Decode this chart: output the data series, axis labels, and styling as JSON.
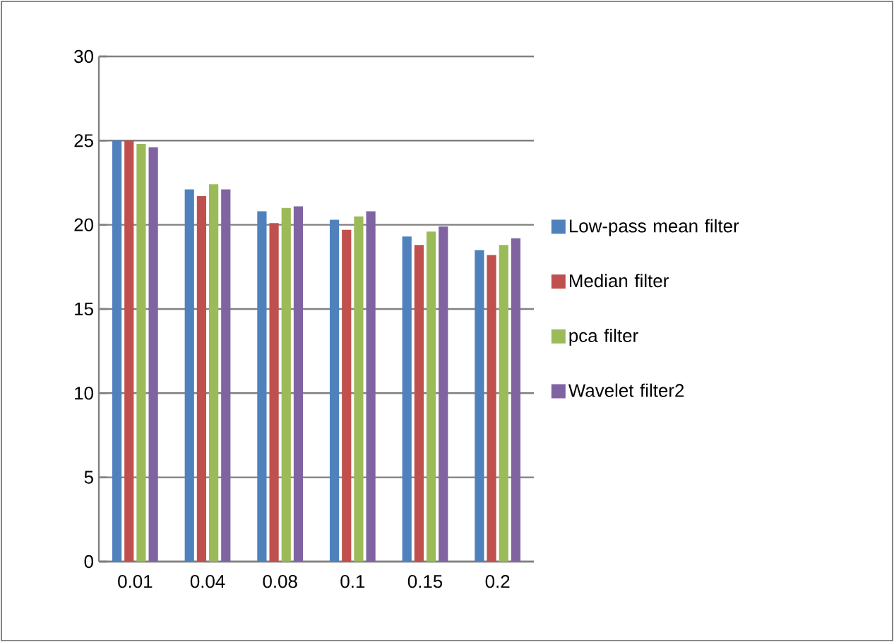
{
  "chart_data": {
    "type": "bar",
    "categories": [
      "0.01",
      "0.04",
      "0.08",
      "0.1",
      "0.15",
      "0.2"
    ],
    "series": [
      {
        "name": "Low-pass mean filter",
        "color": "#4f81bd",
        "values": [
          25.0,
          22.1,
          20.8,
          20.3,
          19.3,
          18.5
        ]
      },
      {
        "name": "Median filter",
        "color": "#c0504d",
        "values": [
          25.0,
          21.7,
          20.1,
          19.7,
          18.8,
          18.2
        ]
      },
      {
        "name": "pca filter",
        "color": "#9bbb59",
        "values": [
          24.8,
          22.4,
          21.0,
          20.5,
          19.6,
          18.8
        ]
      },
      {
        "name": "Wavelet filter2",
        "color": "#8064a2",
        "values": [
          24.6,
          22.1,
          21.1,
          20.8,
          19.9,
          19.2
        ]
      }
    ],
    "ylim": [
      0,
      30
    ],
    "yticks": [
      0,
      5,
      10,
      15,
      20,
      25,
      30
    ],
    "grid": "y",
    "legend": "right"
  }
}
